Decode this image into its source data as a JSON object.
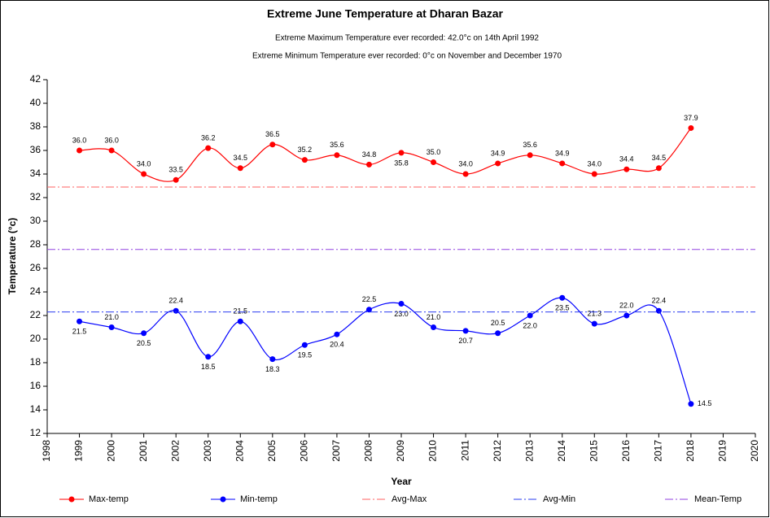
{
  "chart_data": {
    "type": "line",
    "title": "Extreme June Temperature at Dharan Bazar",
    "subtitles": [
      "Extreme Maximum Temperature ever recorded: 42.0°c on 14th April 1992",
      "Extreme Minimum Temperature ever recorded: 0°c on November and December 1970"
    ],
    "x_label": "Year",
    "y_label": "Temperature (°c)",
    "x": [
      1999,
      2000,
      2001,
      2002,
      2003,
      2004,
      2005,
      2006,
      2007,
      2008,
      2009,
      2010,
      2011,
      2012,
      2013,
      2014,
      2015,
      2016,
      2017,
      2018
    ],
    "series": [
      {
        "name": "Max-temp",
        "color": "#ff0000",
        "smooth": true,
        "values": [
          36.0,
          36.0,
          34.0,
          33.5,
          36.2,
          34.5,
          36.5,
          35.2,
          35.6,
          34.8,
          35.8,
          35.0,
          34.0,
          34.9,
          35.6,
          34.9,
          34.0,
          34.4,
          34.5,
          37.9
        ],
        "value_labels": [
          "36.0",
          "36.0",
          "34.0",
          "33.5",
          "36.2",
          "34.5",
          "36.5",
          "35.2",
          "35.6",
          "34.8",
          "35.8",
          "35.0",
          "34.0",
          "34.9",
          "35.6",
          "34.9",
          "34.0",
          "34.4",
          "34.5",
          "37.9"
        ]
      },
      {
        "name": "Min-temp",
        "color": "#0000ff",
        "smooth": true,
        "values": [
          21.5,
          21.0,
          20.5,
          22.4,
          18.5,
          21.5,
          18.3,
          19.5,
          20.4,
          22.5,
          23.0,
          21.0,
          20.7,
          20.5,
          22.0,
          23.5,
          21.3,
          22.0,
          22.4,
          14.5
        ],
        "value_labels": [
          "21.5",
          "21.0",
          "20.5",
          "22.4",
          "18.5",
          "21.5",
          "18.3",
          "19.5",
          "20.4",
          "22.5",
          "23.0",
          "21.0",
          "20.7",
          "20.5",
          "22.0",
          "23.5",
          "21.3",
          "22.0",
          "22.4",
          "14.5"
        ]
      },
      {
        "name": "Avg-Max",
        "color": "#ff6060",
        "dash": "10 3 2 3",
        "value": 32.9
      },
      {
        "name": "Avg-Min",
        "color": "#2a3cf0",
        "dash": "10 3 2 3",
        "value": 22.3
      },
      {
        "name": "Mean-Temp",
        "color": "#9040e0",
        "dash": "10 3 2 3",
        "value": 27.6
      }
    ],
    "xlim": [
      1998,
      2020
    ],
    "xticks": [
      1998,
      1999,
      2000,
      2001,
      2002,
      2003,
      2004,
      2005,
      2006,
      2007,
      2008,
      2009,
      2010,
      2011,
      2012,
      2013,
      2014,
      2015,
      2016,
      2017,
      2018,
      2019,
      2020
    ],
    "ylim": [
      12,
      42
    ],
    "yticks": [
      12,
      14,
      16,
      18,
      20,
      22,
      24,
      26,
      28,
      30,
      32,
      34,
      36,
      38,
      40,
      42
    ],
    "grid": false,
    "legend": "bottom"
  }
}
